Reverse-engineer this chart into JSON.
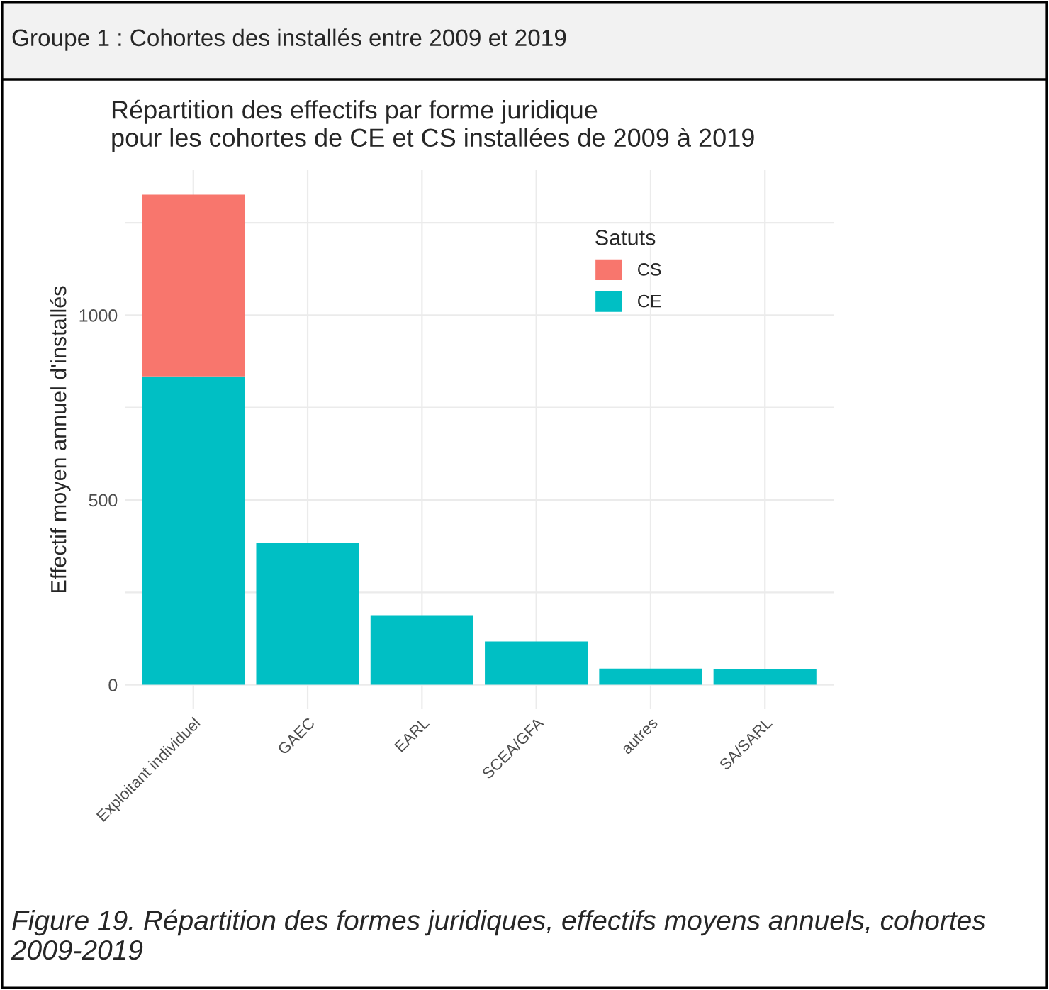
{
  "chart_data": {
    "type": "bar",
    "title": "Répartition des effectifs par forme juridique\npour les cohortes de CE et CS installées de 2009 à 2019",
    "subtitle": "Groupe 1 : Cohortes des installés entre 2009 et 2019",
    "ylabel": "Effectif moyen annuel d'installés",
    "legend_title": "Satuts",
    "categories": [
      "Exploitant individuel",
      "GAEC",
      "EARL",
      "SCEA/GFA",
      "autres",
      "SA/SARL"
    ],
    "stacked": true,
    "series": [
      {
        "name": "CE",
        "color": "#00bfc4",
        "values": [
          834,
          385,
          188,
          117,
          44,
          42
        ]
      },
      {
        "name": "CS",
        "color": "#f8766d",
        "values": [
          492,
          0,
          0,
          0,
          0,
          0
        ]
      }
    ],
    "ylim": [
      -66,
      1392
    ],
    "yticks": [
      0,
      {
        "value": 250,
        "label": null
      },
      500,
      {
        "value": 750,
        "label": null
      },
      1000,
      {
        "value": 1250,
        "label": null
      }
    ],
    "grid": true,
    "legend": "top right",
    "annotations": [
      "Figure 19. Répartition des formes juridiques, effectifs moyens annuels, cohortes 2009-2019"
    ]
  }
}
